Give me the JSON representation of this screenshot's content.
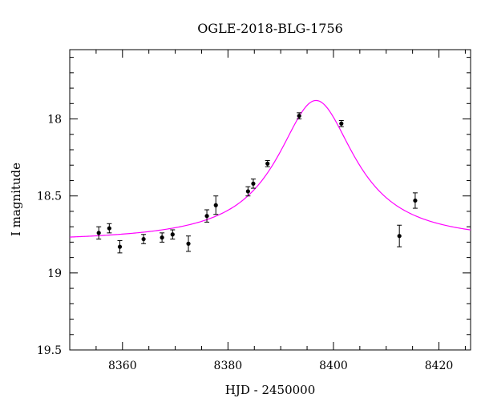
{
  "chart_data": {
    "type": "scatter",
    "title": "OGLE-2018-BLG-1756",
    "xlabel": "HJD - 2450000",
    "ylabel": "I magnitude",
    "xlim": [
      8350,
      8426
    ],
    "ylim": [
      19.5,
      17.55
    ],
    "y_inverted": true,
    "x_ticks": [
      8360,
      8380,
      8400,
      8420
    ],
    "x_tick_labels": [
      "8360",
      "8380",
      "8400",
      "8420"
    ],
    "y_ticks": [
      18,
      18.5,
      19,
      19.5
    ],
    "y_tick_labels": [
      "18",
      "18.5",
      "19",
      "19.5"
    ],
    "grid": false,
    "points": [
      {
        "x": 8355.5,
        "y": 18.74,
        "err": 0.04
      },
      {
        "x": 8357.5,
        "y": 18.71,
        "err": 0.03
      },
      {
        "x": 8359.5,
        "y": 18.83,
        "err": 0.04
      },
      {
        "x": 8364.0,
        "y": 18.78,
        "err": 0.03
      },
      {
        "x": 8367.5,
        "y": 18.77,
        "err": 0.03
      },
      {
        "x": 8369.5,
        "y": 18.75,
        "err": 0.03
      },
      {
        "x": 8372.5,
        "y": 18.81,
        "err": 0.05
      },
      {
        "x": 8376.0,
        "y": 18.63,
        "err": 0.04
      },
      {
        "x": 8377.7,
        "y": 18.56,
        "err": 0.06
      },
      {
        "x": 8383.8,
        "y": 18.47,
        "err": 0.03
      },
      {
        "x": 8384.8,
        "y": 18.42,
        "err": 0.03
      },
      {
        "x": 8387.5,
        "y": 18.29,
        "err": 0.02
      },
      {
        "x": 8393.5,
        "y": 17.98,
        "err": 0.02
      },
      {
        "x": 8401.5,
        "y": 18.03,
        "err": 0.02
      },
      {
        "x": 8412.5,
        "y": 18.76,
        "err": 0.07
      },
      {
        "x": 8415.5,
        "y": 18.53,
        "err": 0.05
      }
    ],
    "model": {
      "type": "single-lens",
      "color": "#ff00ff",
      "peak_x": 8396.7,
      "baseline_mag": 18.8,
      "peak_mag": 17.88,
      "width": 9.0,
      "x_range": [
        8350,
        8426
      ]
    },
    "point_color": "#000000"
  }
}
